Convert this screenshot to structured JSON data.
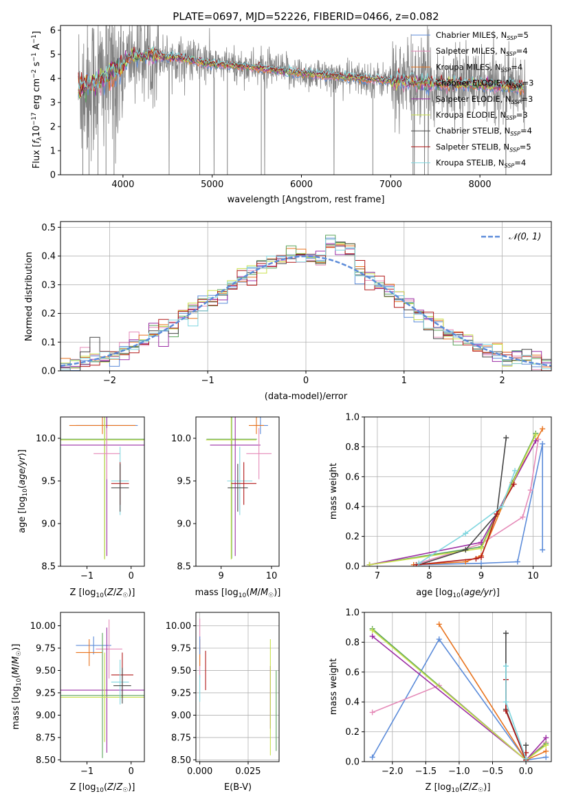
{
  "colors": {
    "chabrier_miles": "#5b8bd9",
    "salpeter_miles": "#e58ab8",
    "kroupa_miles": "#e8721c",
    "chabrier_elodie": "#5aa35a",
    "salpeter_elodie": "#9b2ca3",
    "kroupa_elodie": "#c9e04a",
    "chabrier_stelib": "#444444",
    "salpeter_stelib": "#b01717",
    "kroupa_stelib": "#7fd6df",
    "data_gray": "#808080",
    "gaussian": "#5b8bd9",
    "grid": "#b0b0b0"
  },
  "chart_data": [
    {
      "id": "spectrum",
      "type": "line",
      "title": "PLATE=0697, MJD=52226, FIBERID=0466, z=0.082",
      "xlabel": "wavelength [Angstrom, rest frame]",
      "ylabel": "Flux [f_λ 10^-17 erg cm^-2 s^-1 A^-1]",
      "xlim": [
        3300,
        8800
      ],
      "ylim": [
        0,
        6.2
      ],
      "xticks": [
        4000,
        5000,
        6000,
        7000,
        8000
      ],
      "yticks": [
        0,
        1,
        2,
        3,
        4,
        5,
        6
      ],
      "grid": false,
      "legend_position": "right",
      "continuum": [
        [
          3500,
          3.6
        ],
        [
          3700,
          3.8
        ],
        [
          3900,
          4.3
        ],
        [
          4100,
          4.9
        ],
        [
          4300,
          4.95
        ],
        [
          4600,
          4.85
        ],
        [
          5000,
          4.6
        ],
        [
          5500,
          4.45
        ],
        [
          6000,
          4.2
        ],
        [
          6500,
          4.05
        ],
        [
          7000,
          3.9
        ],
        [
          7500,
          3.8
        ],
        [
          8000,
          3.75
        ],
        [
          8500,
          3.6
        ]
      ],
      "legend": [
        {
          "label": "Chabrier MILES, N",
          "sub": "SSP",
          "suffix": "=5",
          "color": "#5b8bd9"
        },
        {
          "label": "Salpeter MILES, N",
          "sub": "SSP",
          "suffix": "=4",
          "color": "#e58ab8"
        },
        {
          "label": "Kroupa MILES, N",
          "sub": "SSP",
          "suffix": "=4",
          "color": "#e8721c"
        },
        {
          "label": "Chabrier ELODIE, N",
          "sub": "SSP",
          "suffix": "=3",
          "color": "#5aa35a"
        },
        {
          "label": "Salpeter ELODIE, N",
          "sub": "SSP",
          "suffix": "=3",
          "color": "#9b2ca3"
        },
        {
          "label": "Kroupa ELODIE, N",
          "sub": "SSP",
          "suffix": "=3",
          "color": "#c9e04a"
        },
        {
          "label": "Chabrier STELIB, N",
          "sub": "SSP",
          "suffix": "=4",
          "color": "#444444"
        },
        {
          "label": "Salpeter STELIB, N",
          "sub": "SSP",
          "suffix": "=5",
          "color": "#b01717"
        },
        {
          "label": "Kroupa STELIB, N",
          "sub": "SSP",
          "suffix": "=4",
          "color": "#7fd6df"
        }
      ]
    },
    {
      "id": "residuals",
      "type": "line",
      "xlabel": "(data-model)/error",
      "ylabel": "Normed distribution",
      "xlim": [
        -2.5,
        2.5
      ],
      "ylim": [
        0,
        0.52
      ],
      "xticks": [
        -2,
        -1,
        0,
        1,
        2
      ],
      "yticks": [
        0.0,
        0.1,
        0.2,
        0.3,
        0.4,
        0.5
      ],
      "grid": true,
      "legend_position": "upper right",
      "gaussian_label": "𝒩(0, 1)",
      "bin_width": 0.1
    },
    {
      "id": "age_vs_Z",
      "type": "scatter",
      "xlabel": "Z [log10(Z/Z☉)]",
      "ylabel": "age [log10(age/yr)]",
      "xlim": [
        -1.6,
        0.3
      ],
      "ylim": [
        8.5,
        10.25
      ],
      "xticks": [
        -1,
        0
      ],
      "yticks": [
        8.5,
        9.0,
        9.5,
        10.0
      ],
      "grid": false,
      "points": [
        {
          "model": "chabrier_miles",
          "x": -0.55,
          "xerr": 0.7,
          "y": 10.15,
          "yerr": 0.1
        },
        {
          "model": "kroupa_miles",
          "x": -0.65,
          "xerr": 0.75,
          "y": 10.15,
          "yerr": 0.1
        },
        {
          "model": "chabrier_elodie",
          "x": -0.6,
          "xerr": 1.0,
          "y": 9.99,
          "yerr": 1.4
        },
        {
          "model": "kroupa_elodie",
          "x": -0.6,
          "xerr": 1.0,
          "y": 9.98,
          "yerr": 1.4
        },
        {
          "model": "salpeter_elodie",
          "x": -0.55,
          "xerr": 1.1,
          "y": 9.92,
          "yerr": 1.3
        },
        {
          "model": "salpeter_miles",
          "x": -0.55,
          "xerr": 0.3,
          "y": 9.82,
          "yerr": 0.3
        },
        {
          "model": "kroupa_stelib",
          "x": -0.25,
          "xerr": 0.2,
          "y": 9.5,
          "yerr": 0.4
        },
        {
          "model": "salpeter_stelib",
          "x": -0.25,
          "xerr": 0.2,
          "y": 9.47,
          "yerr": 0.25
        },
        {
          "model": "chabrier_stelib",
          "x": -0.25,
          "xerr": 0.2,
          "y": 9.42,
          "yerr": 0.28
        }
      ]
    },
    {
      "id": "age_vs_mass",
      "type": "scatter",
      "xlabel": "mass [log10(M/M☉)]",
      "ylabel": "",
      "xlim": [
        8.5,
        10.15
      ],
      "ylim": [
        8.5,
        10.25
      ],
      "xticks": [
        9,
        10
      ],
      "yticks": [
        8.5,
        9.0,
        9.5,
        10.0
      ],
      "grid": false,
      "points": [
        {
          "model": "chabrier_miles",
          "x": 9.78,
          "xerr": 0.15,
          "y": 10.15,
          "yerr": 0.1
        },
        {
          "model": "kroupa_miles",
          "x": 9.7,
          "xerr": 0.15,
          "y": 10.15,
          "yerr": 0.1
        },
        {
          "model": "chabrier_elodie",
          "x": 9.21,
          "xerr": 0.5,
          "y": 9.99,
          "yerr": 1.4
        },
        {
          "model": "kroupa_elodie",
          "x": 9.2,
          "xerr": 0.5,
          "y": 9.98,
          "yerr": 1.4
        },
        {
          "model": "salpeter_elodie",
          "x": 9.28,
          "xerr": 0.5,
          "y": 9.92,
          "yerr": 1.3
        },
        {
          "model": "salpeter_miles",
          "x": 9.75,
          "xerr": 0.25,
          "y": 9.82,
          "yerr": 0.3
        },
        {
          "model": "kroupa_stelib",
          "x": 9.37,
          "xerr": 0.25,
          "y": 9.5,
          "yerr": 0.4
        },
        {
          "model": "salpeter_stelib",
          "x": 9.45,
          "xerr": 0.25,
          "y": 9.47,
          "yerr": 0.25
        },
        {
          "model": "chabrier_stelib",
          "x": 9.33,
          "xerr": 0.2,
          "y": 9.42,
          "yerr": 0.28
        }
      ]
    },
    {
      "id": "mass_weight_vs_age",
      "type": "line",
      "xlabel": "age [log10(age/yr)]",
      "ylabel": "mass weight",
      "xlim": [
        6.75,
        10.35
      ],
      "ylim": [
        0,
        1.0
      ],
      "xticks": [
        7,
        8,
        9,
        10
      ],
      "yticks": [
        0.0,
        0.2,
        0.4,
        0.6,
        0.8,
        1.0
      ],
      "grid": true,
      "series": [
        {
          "model": "chabrier_miles",
          "points": [
            [
              7.8,
              0.01
            ],
            [
              9.0,
              0.02
            ],
            [
              9.7,
              0.03
            ],
            [
              10.18,
              0.82
            ],
            [
              10.18,
              0.11
            ]
          ]
        },
        {
          "model": "salpeter_miles",
          "points": [
            [
              7.8,
              0.02
            ],
            [
              9.0,
              0.15
            ],
            [
              9.8,
              0.33
            ],
            [
              9.95,
              0.51
            ],
            [
              10.1,
              0.85
            ]
          ]
        },
        {
          "model": "kroupa_miles",
          "points": [
            [
              7.7,
              0.01
            ],
            [
              8.7,
              0.03
            ],
            [
              9.0,
              0.07
            ],
            [
              9.6,
              0.56
            ],
            [
              10.18,
              0.92
            ]
          ]
        },
        {
          "model": "chabrier_elodie",
          "points": [
            [
              6.85,
              0.01
            ],
            [
              9.0,
              0.13
            ],
            [
              10.05,
              0.89
            ]
          ]
        },
        {
          "model": "salpeter_elodie",
          "points": [
            [
              6.85,
              0.01
            ],
            [
              9.0,
              0.16
            ],
            [
              10.05,
              0.84
            ]
          ]
        },
        {
          "model": "kroupa_elodie",
          "points": [
            [
              6.85,
              0.01
            ],
            [
              9.0,
              0.12
            ],
            [
              10.05,
              0.88
            ]
          ]
        },
        {
          "model": "chabrier_stelib",
          "points": [
            [
              7.8,
              0.01
            ],
            [
              8.7,
              0.11
            ],
            [
              9.3,
              0.35
            ],
            [
              9.48,
              0.86
            ]
          ]
        },
        {
          "model": "salpeter_stelib",
          "points": [
            [
              7.75,
              0.01
            ],
            [
              8.9,
              0.05
            ],
            [
              9.0,
              0.06
            ],
            [
              9.3,
              0.35
            ],
            [
              9.63,
              0.55
            ]
          ]
        },
        {
          "model": "kroupa_stelib",
          "points": [
            [
              7.8,
              0.02
            ],
            [
              8.7,
              0.22
            ],
            [
              9.4,
              0.4
            ],
            [
              9.65,
              0.64
            ]
          ]
        }
      ]
    },
    {
      "id": "mass_vs_Z",
      "type": "scatter",
      "xlabel": "Z [log10(Z/Z☉)]",
      "ylabel": "mass [log10(M/M☉)]",
      "xlim": [
        -1.6,
        0.3
      ],
      "ylim": [
        8.48,
        10.15
      ],
      "xticks": [
        -1,
        0
      ],
      "yticks": [
        8.5,
        8.75,
        9.0,
        9.25,
        9.5,
        9.75,
        10.0
      ],
      "grid": false,
      "points": [
        {
          "model": "chabrier_miles",
          "x": -0.85,
          "xerr": 0.4,
          "y": 9.78,
          "yerr": 0.1
        },
        {
          "model": "kroupa_miles",
          "x": -0.95,
          "xerr": 0.3,
          "y": 9.7,
          "yerr": 0.15
        },
        {
          "model": "salpeter_miles",
          "x": -0.5,
          "xerr": 0.3,
          "y": 9.74,
          "yerr": 0.33
        },
        {
          "model": "salpeter_elodie",
          "x": -0.55,
          "xerr": 1.05,
          "y": 9.28,
          "yerr": 0.7
        },
        {
          "model": "chabrier_elodie",
          "x": -0.65,
          "xerr": 0.95,
          "y": 9.22,
          "yerr": 0.7
        },
        {
          "model": "kroupa_elodie",
          "x": -0.6,
          "xerr": 1.0,
          "y": 9.2,
          "yerr": 0.5
        },
        {
          "model": "salpeter_stelib",
          "x": -0.2,
          "xerr": 0.25,
          "y": 9.45,
          "yerr": 0.25
        },
        {
          "model": "kroupa_stelib",
          "x": -0.25,
          "xerr": 0.2,
          "y": 9.37,
          "yerr": 0.25
        },
        {
          "model": "chabrier_stelib",
          "x": -0.2,
          "xerr": 0.2,
          "y": 9.33,
          "yerr": 0.2
        }
      ]
    },
    {
      "id": "mass_vs_ebv",
      "type": "scatter",
      "xlabel": "E(B-V)",
      "ylabel": "",
      "xlim": [
        -0.002,
        0.041
      ],
      "ylim": [
        8.48,
        10.15
      ],
      "xticks": [
        0.0,
        0.025
      ],
      "yticks": [
        8.5,
        8.75,
        9.0,
        9.25,
        9.5,
        9.75,
        10.0
      ],
      "grid": true,
      "points": [
        {
          "model": "salpeter_miles",
          "x": 0.0,
          "y": 9.75,
          "yerr": 0.33
        },
        {
          "model": "kroupa_miles",
          "x": 0.0,
          "y": 9.7,
          "yerr": 0.15
        },
        {
          "model": "kroupa_stelib",
          "x": 0.0,
          "y": 9.3,
          "yerr": 0.15
        },
        {
          "model": "chabrier_miles",
          "x": 0.0,
          "y": 9.78,
          "yerr": 0.1
        },
        {
          "model": "salpeter_stelib",
          "x": 0.003,
          "y": 9.5,
          "yerr": 0.22
        },
        {
          "model": "salpeter_elodie",
          "x": 0.0365,
          "y": 9.2,
          "yerr": 0.35
        },
        {
          "model": "kroupa_elodie",
          "x": 0.0365,
          "y": 9.2,
          "yerr": 0.65
        },
        {
          "model": "chabrier_elodie",
          "x": 0.0395,
          "y": 9.05,
          "yerr": 0.45
        }
      ]
    },
    {
      "id": "mass_weight_vs_Z",
      "type": "line",
      "xlabel": "Z [log10(Z/Z☉)]",
      "ylabel": "mass weight",
      "xlim": [
        -2.42,
        0.38
      ],
      "ylim": [
        0,
        1.0
      ],
      "xticks": [
        -2.0,
        -1.5,
        -1.0,
        -0.5,
        0.0
      ],
      "yticks": [
        0.0,
        0.2,
        0.4,
        0.6,
        0.8,
        1.0
      ],
      "grid": true,
      "series": [
        {
          "model": "chabrier_miles",
          "points": [
            [
              -2.3,
              0.03
            ],
            [
              -1.3,
              0.82
            ],
            [
              0.0,
              0.01
            ],
            [
              0.3,
              0.03
            ]
          ]
        },
        {
          "model": "salpeter_miles",
          "points": [
            [
              -2.3,
              0.33
            ],
            [
              -1.3,
              0.51
            ],
            [
              0.0,
              0.01
            ],
            [
              0.3,
              0.13
            ]
          ]
        },
        {
          "model": "kroupa_miles",
          "points": [
            [
              -1.3,
              0.92
            ],
            [
              0.0,
              0.01
            ],
            [
              0.3,
              0.07
            ]
          ]
        },
        {
          "model": "chabrier_elodie",
          "points": [
            [
              -2.3,
              0.89
            ],
            [
              0.0,
              0.01
            ],
            [
              0.3,
              0.12
            ]
          ]
        },
        {
          "model": "salpeter_elodie",
          "points": [
            [
              -2.3,
              0.84
            ],
            [
              0.0,
              0.01
            ],
            [
              0.3,
              0.16
            ]
          ]
        },
        {
          "model": "kroupa_elodie",
          "points": [
            [
              -2.3,
              0.88
            ],
            [
              0.0,
              0.01
            ],
            [
              0.3,
              0.11
            ]
          ]
        },
        {
          "model": "chabrier_stelib",
          "points": [
            [
              -0.3,
              0.86
            ],
            [
              -0.3,
              0.35
            ],
            [
              0.0,
              0.01
            ],
            [
              0.0,
              0.11
            ]
          ]
        },
        {
          "model": "salpeter_stelib",
          "points": [
            [
              -0.3,
              0.55
            ],
            [
              -0.3,
              0.34
            ],
            [
              0.0,
              0.01
            ],
            [
              0.0,
              0.06
            ]
          ]
        },
        {
          "model": "kroupa_stelib",
          "points": [
            [
              -0.3,
              0.64
            ],
            [
              -0.3,
              0.4
            ],
            [
              0.0,
              0.02
            ]
          ]
        }
      ]
    }
  ]
}
